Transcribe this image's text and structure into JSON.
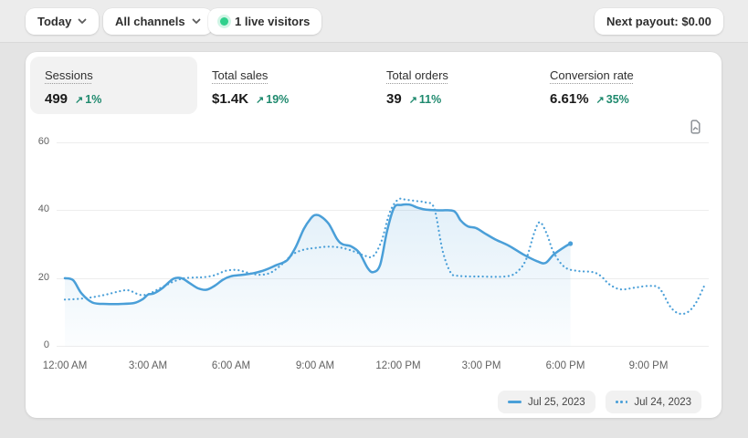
{
  "toolbar": {
    "date_filter": "Today",
    "channel_filter": "All channels",
    "live_visitors": "1 live visitors",
    "next_payout": "Next payout: $0.00"
  },
  "icons": {
    "delta_arrow": "↗"
  },
  "colors": {
    "accent_blue": "#4A9FD8",
    "delta_green": "#1f8a6e",
    "live_green": "#2fd08c",
    "selected_tile_bg": "#f2f2f2"
  },
  "metrics": [
    {
      "label": "Sessions",
      "value": "499",
      "delta": "1%",
      "selected": true
    },
    {
      "label": "Total sales",
      "value": "$1.4K",
      "delta": "19%",
      "selected": false
    },
    {
      "label": "Total orders",
      "value": "39",
      "delta": "11%",
      "selected": false
    },
    {
      "label": "Conversion rate",
      "value": "6.61%",
      "delta": "35%",
      "selected": false
    }
  ],
  "chart_data": {
    "type": "line",
    "metric": "Sessions",
    "x_unit": "hour_of_day",
    "xlim": [
      0,
      24
    ],
    "ylim": [
      0,
      60
    ],
    "yticks": [
      0,
      20,
      40,
      60
    ],
    "ytick_labels": [
      "60",
      "40",
      "20",
      "0"
    ],
    "xtick_labels": [
      "12:00 AM",
      "3:00 AM",
      "6:00 AM",
      "9:00 AM",
      "12:00 PM",
      "3:00 PM",
      "6:00 PM",
      "9:00 PM"
    ],
    "grid": "horizontal",
    "legend_position": "bottom-right",
    "series": [
      {
        "name": "Jul 25, 2023",
        "style": "solid",
        "color": "#4A9FD8",
        "area_fill": true,
        "points": [
          [
            0,
            20
          ],
          [
            0.3,
            19.4
          ],
          [
            0.6,
            15.5
          ],
          [
            1,
            12.8
          ],
          [
            1.5,
            12.4
          ],
          [
            2,
            12.4
          ],
          [
            2.5,
            12.7
          ],
          [
            2.8,
            13.8
          ],
          [
            3,
            15.2
          ],
          [
            3.2,
            15.5
          ],
          [
            3.5,
            17
          ],
          [
            3.9,
            19.8
          ],
          [
            4.2,
            20
          ],
          [
            4.5,
            18.5
          ],
          [
            4.8,
            17
          ],
          [
            5.1,
            16.6
          ],
          [
            5.4,
            17.8
          ],
          [
            5.7,
            19.6
          ],
          [
            6,
            20.6
          ],
          [
            6.4,
            21
          ],
          [
            6.8,
            21.5
          ],
          [
            7.2,
            22.4
          ],
          [
            7.6,
            23.8
          ],
          [
            8,
            25.3
          ],
          [
            8.3,
            29
          ],
          [
            8.6,
            34.5
          ],
          [
            8.85,
            37.6
          ],
          [
            9,
            38.6
          ],
          [
            9.2,
            38.3
          ],
          [
            9.5,
            36
          ],
          [
            9.8,
            31.5
          ],
          [
            10,
            30
          ],
          [
            10.3,
            29.4
          ],
          [
            10.6,
            27.5
          ],
          [
            10.9,
            23
          ],
          [
            11.1,
            21.8
          ],
          [
            11.35,
            24
          ],
          [
            11.6,
            34
          ],
          [
            11.85,
            40.8
          ],
          [
            12.1,
            41.6
          ],
          [
            12.4,
            41.7
          ],
          [
            12.7,
            40.8
          ],
          [
            13,
            40.2
          ],
          [
            13.5,
            40
          ],
          [
            14,
            39.8
          ],
          [
            14.25,
            37
          ],
          [
            14.5,
            35.3
          ],
          [
            14.8,
            34.8
          ],
          [
            15.1,
            33.3
          ],
          [
            15.5,
            31.4
          ],
          [
            16,
            29.5
          ],
          [
            16.5,
            27
          ],
          [
            17,
            25
          ],
          [
            17.3,
            24.5
          ],
          [
            17.6,
            27
          ],
          [
            18,
            29.3
          ],
          [
            18.2,
            30.2
          ]
        ]
      },
      {
        "name": "Jul 24, 2023",
        "style": "dotted",
        "color": "#4A9FD8",
        "area_fill": false,
        "points": [
          [
            0,
            13.7
          ],
          [
            0.5,
            13.9
          ],
          [
            1,
            14.4
          ],
          [
            1.5,
            15.2
          ],
          [
            2,
            16.2
          ],
          [
            2.3,
            16.4
          ],
          [
            2.7,
            15.1
          ],
          [
            3,
            15.3
          ],
          [
            3.3,
            16.5
          ],
          [
            3.7,
            18.2
          ],
          [
            4,
            19.3
          ],
          [
            4.3,
            20
          ],
          [
            4.7,
            20.2
          ],
          [
            5,
            20.3
          ],
          [
            5.4,
            20.9
          ],
          [
            5.8,
            22.2
          ],
          [
            6.2,
            22.4
          ],
          [
            6.6,
            21.6
          ],
          [
            7,
            21
          ],
          [
            7.4,
            21.6
          ],
          [
            7.8,
            24
          ],
          [
            8.2,
            27
          ],
          [
            8.6,
            28.4
          ],
          [
            9,
            28.9
          ],
          [
            9.5,
            29.3
          ],
          [
            10,
            28.9
          ],
          [
            10.5,
            27.6
          ],
          [
            10.8,
            26.6
          ],
          [
            11.1,
            26.5
          ],
          [
            11.4,
            31
          ],
          [
            11.7,
            39.5
          ],
          [
            12,
            43.2
          ],
          [
            12.3,
            43.1
          ],
          [
            12.7,
            42.7
          ],
          [
            13,
            42.3
          ],
          [
            13.3,
            40.5
          ],
          [
            13.6,
            28
          ],
          [
            13.9,
            21.5
          ],
          [
            14.2,
            20.7
          ],
          [
            14.6,
            20.5
          ],
          [
            15,
            20.5
          ],
          [
            15.5,
            20.4
          ],
          [
            16,
            20.7
          ],
          [
            16.3,
            22
          ],
          [
            16.6,
            25.5
          ],
          [
            16.9,
            33.5
          ],
          [
            17.1,
            36.5
          ],
          [
            17.35,
            33
          ],
          [
            17.6,
            27.5
          ],
          [
            18,
            23.2
          ],
          [
            18.5,
            22.1
          ],
          [
            19,
            21.8
          ],
          [
            19.3,
            20.6
          ],
          [
            19.6,
            18.2
          ],
          [
            20,
            16.7
          ],
          [
            20.5,
            17.2
          ],
          [
            21,
            17.7
          ],
          [
            21.4,
            17
          ],
          [
            21.8,
            11.5
          ],
          [
            22.1,
            9.6
          ],
          [
            22.4,
            9.9
          ],
          [
            22.7,
            12.5
          ],
          [
            23,
            17.5
          ]
        ]
      }
    ]
  }
}
